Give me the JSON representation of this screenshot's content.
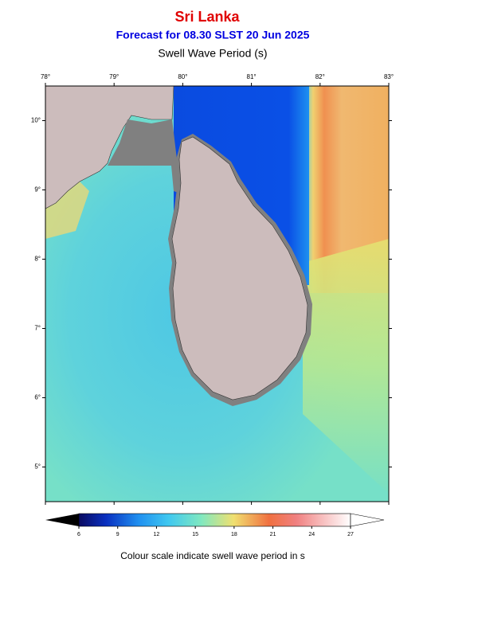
{
  "chart_data": {
    "type": "map",
    "title": "Sri Lanka",
    "subtitle": "Forecast for  08.30 SLST 20 Jun 2025",
    "plot_title": "Swell Wave Period (s)",
    "xlim": [
      78,
      83
    ],
    "ylim": [
      4.5,
      10.5
    ],
    "xticks": [
      {
        "value": 78,
        "label": "78°"
      },
      {
        "value": 79,
        "label": "79°"
      },
      {
        "value": 80,
        "label": "80°"
      },
      {
        "value": 81,
        "label": "81°"
      },
      {
        "value": 82,
        "label": "82°"
      },
      {
        "value": 83,
        "label": "83°"
      }
    ],
    "yticks": [
      {
        "value": 10,
        "label": "10°"
      },
      {
        "value": 9,
        "label": "9°"
      },
      {
        "value": 8,
        "label": "8°"
      },
      {
        "value": 7,
        "label": "7°"
      },
      {
        "value": 6,
        "label": "6°"
      },
      {
        "value": 5,
        "label": "5°"
      }
    ],
    "colorbar": {
      "lim": [
        6,
        27
      ],
      "ticks": [
        6,
        9,
        12,
        15,
        18,
        21,
        24,
        27
      ]
    },
    "caption": "Colour scale indicate swell wave period in s"
  }
}
